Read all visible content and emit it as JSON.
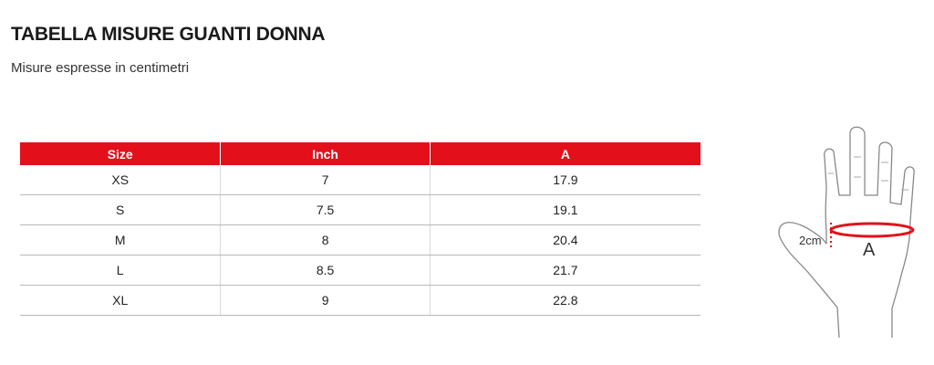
{
  "header": {
    "title": "TABELLA MISURE GUANTI DONNA",
    "subtitle": "Misure espresse in centimetri"
  },
  "table": {
    "columns": [
      "Size",
      "Inch",
      "A"
    ],
    "rows": [
      {
        "size": "XS",
        "inch": "7",
        "a": "17.9"
      },
      {
        "size": "S",
        "inch": "7.5",
        "a": "19.1"
      },
      {
        "size": "M",
        "inch": "8",
        "a": "20.4"
      },
      {
        "size": "L",
        "inch": "8.5",
        "a": "21.7"
      },
      {
        "size": "XL",
        "inch": "9",
        "a": "22.8"
      }
    ]
  },
  "illustration": {
    "icon": "hand-measurement-icon",
    "distance_label": "2cm",
    "measure_label": "A"
  },
  "colors": {
    "accent": "#e3101b",
    "header_text": "#ffffff",
    "outline": "#888888"
  }
}
